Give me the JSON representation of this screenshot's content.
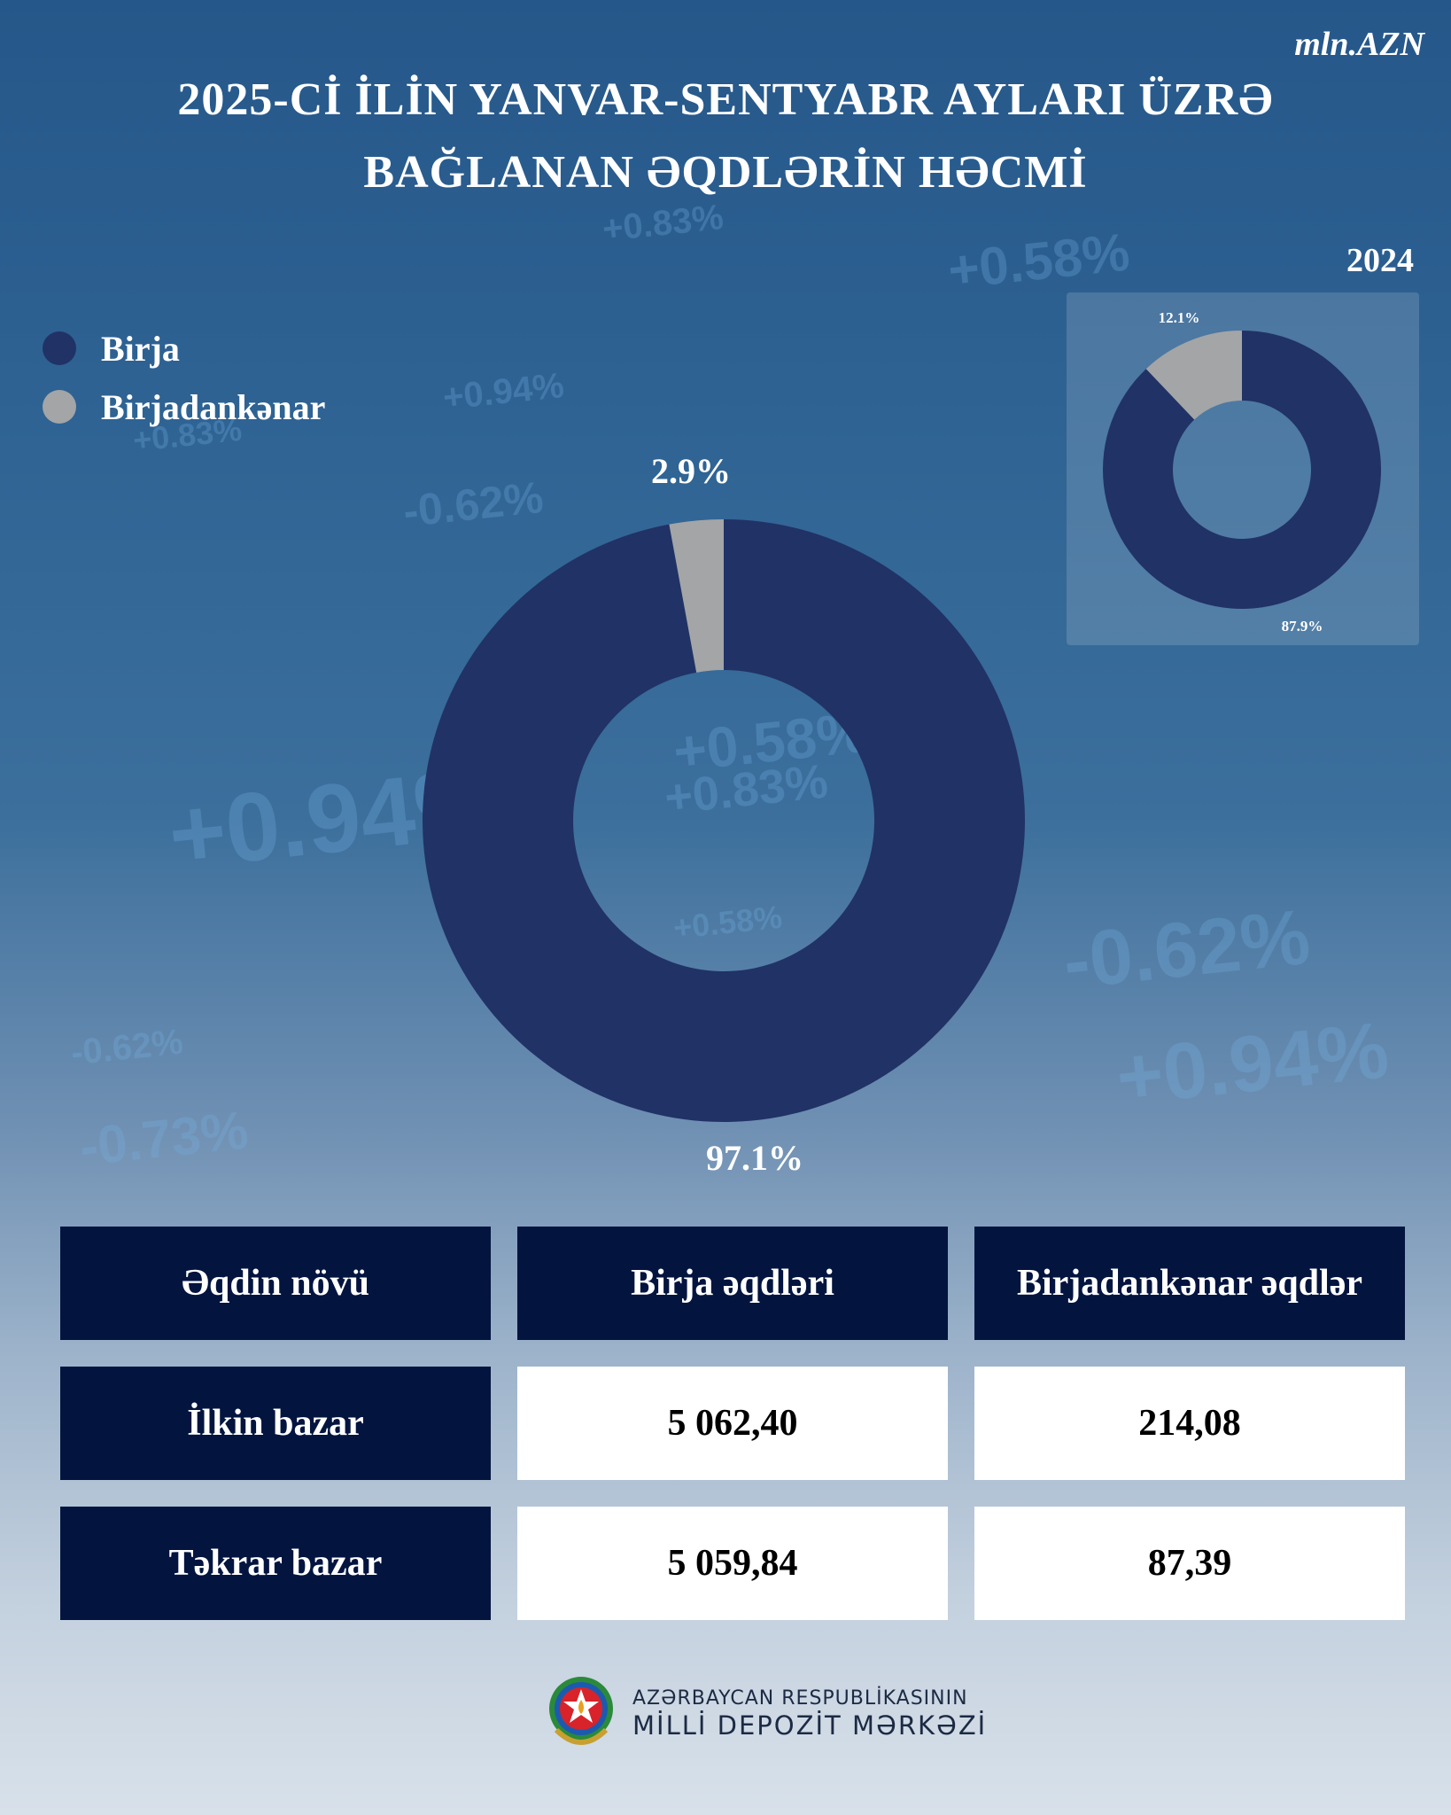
{
  "header": {
    "unit": "mln.AZN",
    "title_line1": "2025-Cİ İLİN YANVAR-SENTYABR AYLARI ÜZRƏ",
    "title_line2": "BAĞLANAN ƏQDLƏRİN HƏCMİ"
  },
  "legend": [
    {
      "label": "Birja",
      "color": "#213266"
    },
    {
      "label": "Birjadankənar",
      "color": "#a3a5a7"
    }
  ],
  "chart_data": [
    {
      "type": "pie",
      "style": "donut",
      "categories": [
        "Birja",
        "Birjadankənar"
      ],
      "values": [
        97.1,
        2.9
      ],
      "labels": [
        "97.1%",
        "2.9%"
      ],
      "colors": [
        "#213266",
        "#a3a5a7"
      ]
    },
    {
      "type": "pie",
      "style": "donut",
      "title": "2024",
      "categories": [
        "Birja",
        "Birjadankənar"
      ],
      "values": [
        87.9,
        12.1
      ],
      "labels": [
        "87.9%",
        "12.1%"
      ],
      "colors": [
        "#213266",
        "#a3a5a7"
      ]
    }
  ],
  "table": {
    "header": [
      "Əqdin növü",
      "Birja əqdləri",
      "Birjadankənar əqdlər"
    ],
    "rows": [
      [
        "İlkin bazar",
        "5 062,40",
        "214,08"
      ],
      [
        "Təkrar bazar",
        "5 059,84",
        "87,39"
      ]
    ]
  },
  "footer": {
    "line1": "AZƏRBAYCAN RESPUBLİKASININ",
    "line2": "MİLLİ DEPOZİT MƏRKƏZİ",
    "logo_icon": "azerbaijan-emblem-icon"
  },
  "background_decor": [
    "+0.83%",
    "+0.58%",
    "+0.94%",
    "+0.83%",
    "-0.62%",
    "+0.58%",
    "+0.83%",
    "+0.94%",
    "+0.58%",
    "-0.62%",
    "-0.62%",
    "+0.94%",
    "-0.73%"
  ]
}
